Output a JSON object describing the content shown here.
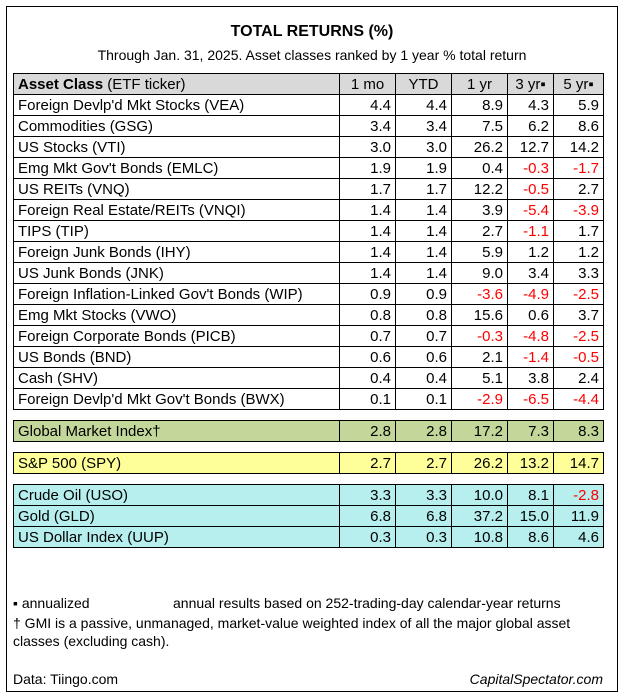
{
  "title": "TOTAL RETURNS (%)",
  "subtitle": "Through Jan. 31, 2025. Asset classes ranked by 1 year % total return",
  "chart_data": {
    "type": "table",
    "header": {
      "asset_bold": "Asset Class",
      "asset_rest": " (ETF ticker)",
      "columns": [
        "1 mo",
        "YTD",
        "1 yr",
        "3 yr▪",
        "5 yr▪"
      ]
    },
    "sections": [
      {
        "kind": "main",
        "rows": [
          {
            "name": "Foreign Devlp'd Mkt Stocks (VEA)",
            "values": [
              "4.4",
              "4.4",
              "8.9",
              "4.3",
              "5.9"
            ]
          },
          {
            "name": "Commodities (GSG)",
            "values": [
              "3.4",
              "3.4",
              "7.5",
              "6.2",
              "8.6"
            ]
          },
          {
            "name": "US Stocks (VTI)",
            "values": [
              "3.0",
              "3.0",
              "26.2",
              "12.7",
              "14.2"
            ]
          },
          {
            "name": "Emg Mkt Gov't Bonds (EMLC)",
            "values": [
              "1.9",
              "1.9",
              "0.4",
              "-0.3",
              "-1.7"
            ]
          },
          {
            "name": "US REITs (VNQ)",
            "values": [
              "1.7",
              "1.7",
              "12.2",
              "-0.5",
              "2.7"
            ]
          },
          {
            "name": "Foreign Real Estate/REITs (VNQI)",
            "values": [
              "1.4",
              "1.4",
              "3.9",
              "-5.4",
              "-3.9"
            ]
          },
          {
            "name": "TIPS (TIP)",
            "values": [
              "1.4",
              "1.4",
              "2.7",
              "-1.1",
              "1.7"
            ]
          },
          {
            "name": "Foreign Junk Bonds (IHY)",
            "values": [
              "1.4",
              "1.4",
              "5.9",
              "1.2",
              "1.2"
            ]
          },
          {
            "name": "US Junk Bonds (JNK)",
            "values": [
              "1.4",
              "1.4",
              "9.0",
              "3.4",
              "3.3"
            ]
          },
          {
            "name": "Foreign Inflation-Linked Gov't Bonds (WIP)",
            "values": [
              "0.9",
              "0.9",
              "-3.6",
              "-4.9",
              "-2.5"
            ]
          },
          {
            "name": "Emg Mkt Stocks (VWO)",
            "values": [
              "0.8",
              "0.8",
              "15.6",
              "0.6",
              "3.7"
            ]
          },
          {
            "name": "Foreign Corporate Bonds (PICB)",
            "values": [
              "0.7",
              "0.7",
              "-0.3",
              "-4.8",
              "-2.5"
            ]
          },
          {
            "name": "US Bonds (BND)",
            "values": [
              "0.6",
              "0.6",
              "2.1",
              "-1.4",
              "-0.5"
            ]
          },
          {
            "name": "Cash (SHV)",
            "values": [
              "0.4",
              "0.4",
              "5.1",
              "3.8",
              "2.4"
            ]
          },
          {
            "name": "Foreign Devlp'd Mkt Gov't Bonds (BWX)",
            "values": [
              "0.1",
              "0.1",
              "-2.9",
              "-6.5",
              "-4.4"
            ]
          }
        ]
      },
      {
        "kind": "gmi",
        "rows": [
          {
            "name": "Global Market Index†",
            "values": [
              "2.8",
              "2.8",
              "17.2",
              "7.3",
              "8.3"
            ]
          }
        ]
      },
      {
        "kind": "spy",
        "rows": [
          {
            "name": "S&P 500 (SPY)",
            "values": [
              "2.7",
              "2.7",
              "26.2",
              "13.2",
              "14.7"
            ]
          }
        ]
      },
      {
        "kind": "comm",
        "rows": [
          {
            "name": "Crude Oil (USO)",
            "values": [
              "3.3",
              "3.3",
              "10.0",
              "8.1",
              "-2.8"
            ]
          },
          {
            "name": "Gold (GLD)",
            "values": [
              "6.8",
              "6.8",
              "37.2",
              "15.0",
              "11.9"
            ]
          },
          {
            "name": "US Dollar Index (UUP)",
            "values": [
              "0.3",
              "0.3",
              "10.8",
              "8.6",
              "4.6"
            ]
          }
        ]
      }
    ],
    "colors": {
      "header_bg": "#d9d9d9",
      "gmi_bg": "#c4d79b",
      "spy_bg": "#ffff99",
      "comm_bg": "#b7eeee",
      "negative_text": "#ff0000"
    }
  },
  "notes": {
    "annualized_marker": "▪ annualized",
    "annualized_detail": "annual results based on 252-trading-day calendar-year returns",
    "gmi_note_line1": "† GMI is a passive, unmanaged, market-value weighted index of all the major global asset",
    "gmi_note_line2": "classes (excluding cash).",
    "data_source": "Data: Tiingo.com",
    "credit": "CapitalSpectator.com"
  }
}
